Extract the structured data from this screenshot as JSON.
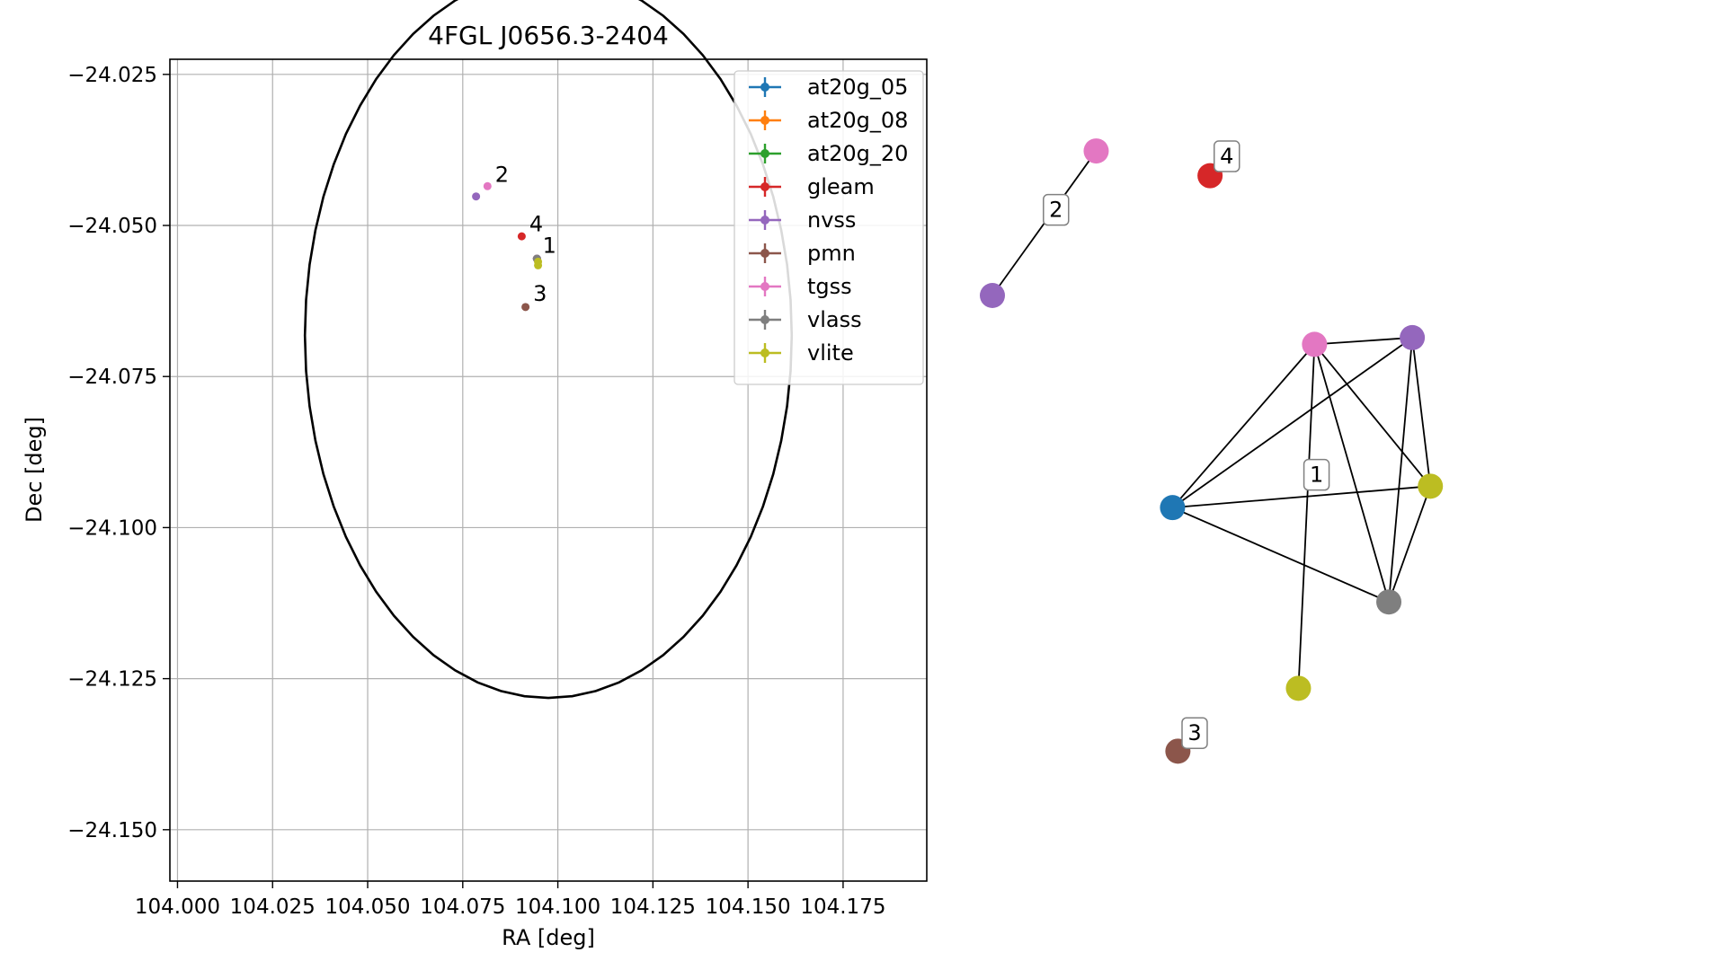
{
  "colors": {
    "at20g_05": "#1f77b4",
    "at20g_08": "#ff7f0e",
    "at20g_20": "#2ca02c",
    "gleam": "#d62728",
    "nvss": "#9467bd",
    "pmn": "#8c564b",
    "tgss": "#e377c2",
    "vlass": "#7f7f7f",
    "vlite": "#bcbd22"
  },
  "chart_data": [
    {
      "type": "scatter",
      "title": "4FGL J0656.3-2404",
      "xlabel": "RA [deg]",
      "ylabel": "Dec [deg]",
      "xlim": [
        103.998,
        104.197
      ],
      "ylim": [
        -24.1585,
        -24.0225
      ],
      "grid": true,
      "legend_position": "upper-right",
      "x_ticks": [
        "104.000",
        "104.025",
        "104.050",
        "104.075",
        "104.100",
        "104.125",
        "104.150",
        "104.175"
      ],
      "x_tick_values": [
        104.0,
        104.025,
        104.05,
        104.075,
        104.1,
        104.125,
        104.15,
        104.175
      ],
      "y_ticks": [
        "−24.000",
        "−24.025",
        "−24.050",
        "−24.075",
        "−24.100",
        "−24.125",
        "−24.150"
      ],
      "y_tick_values": [
        -24.0,
        -24.025,
        -24.05,
        -24.075,
        -24.1,
        -24.125,
        -24.15
      ],
      "legend": [
        "at20g_05",
        "at20g_08",
        "at20g_20",
        "gleam",
        "nvss",
        "pmn",
        "tgss",
        "vlass",
        "vlite"
      ],
      "series": [
        {
          "name": "at20g_05",
          "points": [
            [
              104.0945,
              -24.0555
            ]
          ]
        },
        {
          "name": "at20g_08",
          "points": [
            [
              104.0945,
              -24.0555
            ]
          ]
        },
        {
          "name": "at20g_20",
          "points": [
            [
              104.0945,
              -24.0555
            ]
          ]
        },
        {
          "name": "gleam",
          "points": [
            [
              104.0905,
              -24.0518
            ]
          ]
        },
        {
          "name": "nvss",
          "points": [
            [
              104.0785,
              -24.0452
            ],
            [
              104.0945,
              -24.0555
            ]
          ]
        },
        {
          "name": "pmn",
          "points": [
            [
              104.0915,
              -24.0635
            ]
          ]
        },
        {
          "name": "tgss",
          "points": [
            [
              104.0815,
              -24.0435
            ],
            [
              104.0945,
              -24.0555
            ]
          ]
        },
        {
          "name": "vlass",
          "points": [
            [
              104.0945,
              -24.0555
            ]
          ]
        },
        {
          "name": "vlite",
          "points": [
            [
              104.0948,
              -24.056
            ],
            [
              104.0948,
              -24.0566
            ]
          ]
        }
      ],
      "ellipse": {
        "center": [
          104.0975,
          -24.0682
        ],
        "ra_half_width": 0.064,
        "dec_half_height": 0.06
      },
      "annotations": [
        {
          "text": "2",
          "x": 104.0835,
          "y": -24.0428
        },
        {
          "text": "4",
          "x": 104.0925,
          "y": -24.051
        },
        {
          "text": "1",
          "x": 104.096,
          "y": -24.0545
        },
        {
          "text": "3",
          "x": 104.0935,
          "y": -24.0625
        }
      ]
    },
    {
      "type": "network",
      "nodes": [
        {
          "id": "g2_nvss",
          "catalog": "nvss",
          "x": 0.0,
          "y": 0.0
        },
        {
          "id": "g2_tgss",
          "catalog": "tgss",
          "x": 0.155,
          "y": 0.216
        },
        {
          "id": "g4_gleam",
          "catalog": "gleam",
          "x": 0.325,
          "y": 0.179
        },
        {
          "id": "g1_at20g",
          "catalog": "at20g_05",
          "x": 0.269,
          "y": -0.317
        },
        {
          "id": "g1_tgss",
          "catalog": "tgss",
          "x": 0.481,
          "y": -0.073
        },
        {
          "id": "g1_nvss",
          "catalog": "nvss",
          "x": 0.627,
          "y": -0.063
        },
        {
          "id": "g1_vlite_a",
          "catalog": "vlite",
          "x": 0.654,
          "y": -0.285
        },
        {
          "id": "g1_vlass",
          "catalog": "vlass",
          "x": 0.592,
          "y": -0.458
        },
        {
          "id": "g1_vlite_b",
          "catalog": "vlite",
          "x": 0.457,
          "y": -0.587
        },
        {
          "id": "g3_pmn",
          "catalog": "pmn",
          "x": 0.277,
          "y": -0.681
        }
      ],
      "edges": [
        [
          "g2_nvss",
          "g2_tgss"
        ],
        [
          "g1_tgss",
          "g1_nvss"
        ],
        [
          "g1_at20g",
          "g1_tgss"
        ],
        [
          "g1_at20g",
          "g1_nvss"
        ],
        [
          "g1_at20g",
          "g1_vlite_a"
        ],
        [
          "g1_at20g",
          "g1_vlass"
        ],
        [
          "g1_tgss",
          "g1_vlass"
        ],
        [
          "g1_tgss",
          "g1_vlite_a"
        ],
        [
          "g1_tgss",
          "g1_vlite_b"
        ],
        [
          "g1_nvss",
          "g1_vlite_a"
        ],
        [
          "g1_nvss",
          "g1_vlass"
        ],
        [
          "g1_vlite_a",
          "g1_vlass"
        ]
      ],
      "group_labels": [
        {
          "text": "2",
          "x": 0.095,
          "y": 0.128
        },
        {
          "text": "4",
          "x": 0.35,
          "y": 0.208
        },
        {
          "text": "1",
          "x": 0.484,
          "y": -0.268
        },
        {
          "text": "3",
          "x": 0.302,
          "y": -0.654
        }
      ]
    }
  ]
}
